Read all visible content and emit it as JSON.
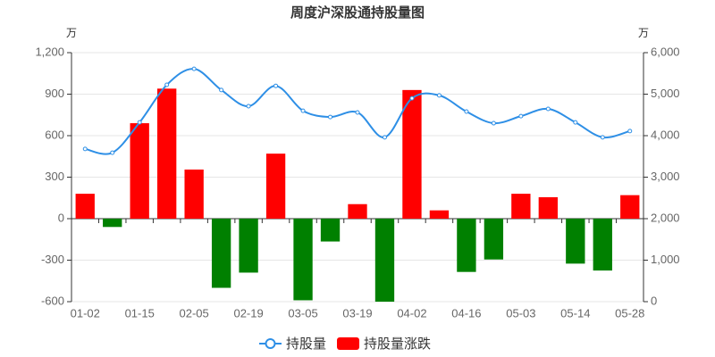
{
  "chart_data": {
    "type": "bar",
    "title": "周度沪深股通持股量图",
    "y_label": "万",
    "y2_label": "万",
    "categories": [
      "01-02",
      null,
      "01-15",
      null,
      "02-05",
      null,
      "02-19",
      null,
      "03-05",
      null,
      "03-19",
      null,
      "04-02",
      null,
      "04-16",
      null,
      "05-03",
      null,
      "05-14",
      null,
      "05-28"
    ],
    "series": [
      {
        "name": "持股量",
        "type": "line",
        "axis": "y2",
        "color": "#2e8fe6",
        "values": [
          3680,
          3590,
          4320,
          5225,
          5610,
          5100,
          4710,
          5200,
          4600,
          4450,
          4560,
          3960,
          4900,
          4970,
          4580,
          4300,
          4470,
          4645,
          4320,
          3960,
          4110
        ]
      },
      {
        "name": "持股量涨跌",
        "type": "bar",
        "color": "#ff0000",
        "negative_color": "#008000",
        "values": [
          180,
          -60,
          690,
          940,
          355,
          -500,
          -390,
          470,
          -590,
          -165,
          105,
          -600,
          930,
          60,
          -385,
          -295,
          180,
          155,
          -325,
          -375,
          170
        ]
      }
    ],
    "ylim": [
      -600,
      1200
    ],
    "yticks": [
      -600,
      -300,
      0,
      300,
      600,
      900,
      {
        "value": 1200,
        "label": "1,200"
      }
    ],
    "y2lim": [
      0,
      6000
    ],
    "y2ticks": [
      0,
      {
        "value": 1000,
        "label": "1,000"
      },
      {
        "value": 2000,
        "label": "2,000"
      },
      {
        "value": 3000,
        "label": "3,000"
      },
      {
        "value": 4000,
        "label": "4,000"
      },
      {
        "value": 5000,
        "label": "5,000"
      },
      {
        "value": 6000,
        "label": "6,000"
      }
    ],
    "grid": true
  }
}
